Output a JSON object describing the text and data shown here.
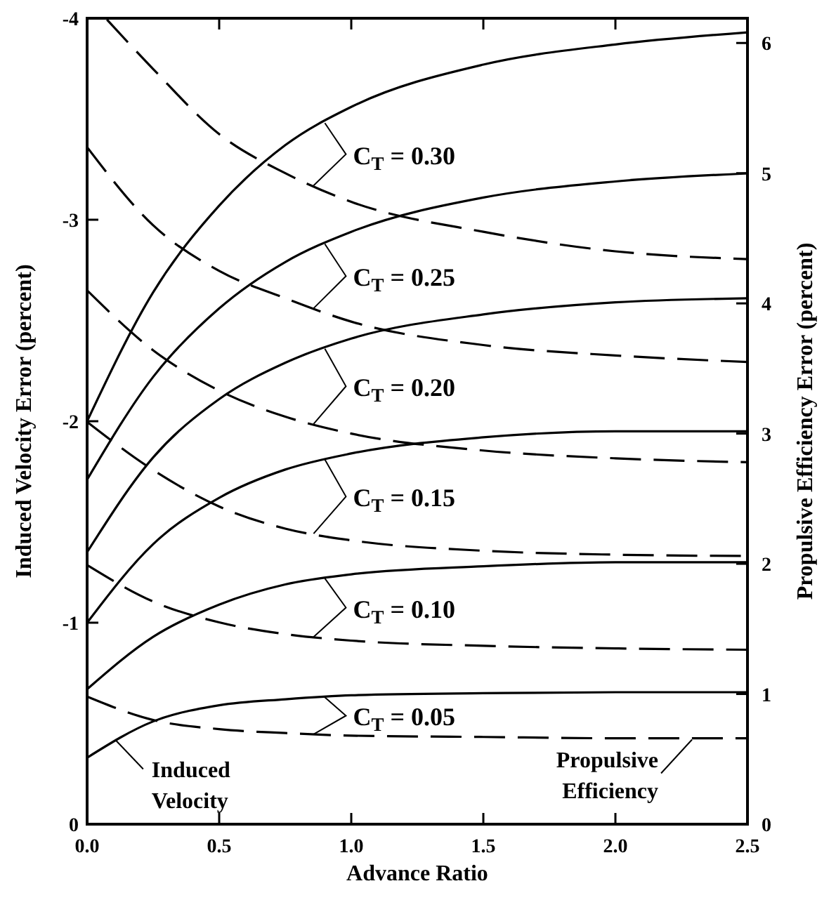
{
  "chart_data": {
    "type": "line",
    "xlabel": "Advance Ratio",
    "ylabel": "Induced Velocity Error (percent)",
    "y2label": "Propulsive Efficiency Error (percent)",
    "x": [
      0,
      0.25,
      0.5,
      0.75,
      1,
      1.5,
      2,
      2.5
    ],
    "xlim": [
      0,
      2.5
    ],
    "xticks": [
      {
        "value": 0,
        "label": "0.0"
      },
      0.5,
      {
        "value": 1,
        "label": "1.0"
      },
      1.5,
      {
        "value": 2,
        "label": "2.0"
      },
      2.5
    ],
    "ylim": [
      0,
      -4
    ],
    "yticks": [
      0,
      -1,
      -2,
      -3,
      -4
    ],
    "y2lim": [
      0,
      6.19
    ],
    "y2ticks": [
      0,
      1,
      2,
      3,
      4,
      5,
      6
    ],
    "grid": false,
    "marker": "none",
    "series": [
      {
        "color": "#000000",
        "line_style": "solid",
        "values": [
          -0.33,
          -0.51,
          -0.59,
          -0.62,
          -0.64,
          -0.65,
          -0.655,
          -0.655
        ]
      },
      {
        "color": "#000000",
        "line_style": "solid",
        "values": [
          -0.67,
          -0.93,
          -1.09,
          -1.19,
          -1.24,
          -1.28,
          -1.3,
          -1.3
        ]
      },
      {
        "color": "#000000",
        "line_style": "solid",
        "values": [
          -1.0,
          -1.39,
          -1.62,
          -1.76,
          -1.84,
          -1.92,
          -1.95,
          -1.95
        ]
      },
      {
        "color": "#000000",
        "line_style": "solid",
        "values": [
          -1.35,
          -1.82,
          -2.11,
          -2.29,
          -2.41,
          -2.53,
          -2.59,
          -2.61
        ]
      },
      {
        "color": "#000000",
        "line_style": "solid",
        "values": [
          -1.71,
          -2.22,
          -2.56,
          -2.79,
          -2.94,
          -3.11,
          -3.19,
          -3.23
        ]
      },
      {
        "color": "#000000",
        "line_style": "solid",
        "values": [
          -2.0,
          -2.64,
          -3.07,
          -3.37,
          -3.56,
          -3.77,
          -3.87,
          -3.93
        ]
      },
      {
        "color": "#000000",
        "line_style": "dashed",
        "axis": "y2",
        "values": [
          0.98,
          0.8,
          0.73,
          0.7,
          0.68,
          0.67,
          0.66,
          0.66
        ]
      },
      {
        "color": "#000000",
        "line_style": "dashed",
        "axis": "y2",
        "values": [
          1.99,
          1.71,
          1.55,
          1.46,
          1.41,
          1.37,
          1.35,
          1.34
        ]
      },
      {
        "color": "#000000",
        "line_style": "dashed",
        "axis": "y2",
        "values": [
          3.09,
          2.72,
          2.44,
          2.27,
          2.18,
          2.1,
          2.07,
          2.06
        ]
      },
      {
        "color": "#000000",
        "line_style": "dashed",
        "axis": "y2",
        "values": [
          4.1,
          3.64,
          3.33,
          3.13,
          3.0,
          2.87,
          2.81,
          2.78
        ]
      },
      {
        "color": "#000000",
        "line_style": "dashed",
        "axis": "y2",
        "values": [
          5.2,
          4.6,
          4.25,
          4.04,
          3.86,
          3.68,
          3.6,
          3.55
        ]
      },
      {
        "color": "#000000",
        "line_style": "dashed",
        "axis": "y2",
        "x": [
          0.075,
          0.25,
          0.5,
          0.75,
          1,
          1.5,
          2,
          2.5
        ],
        "values": [
          6.18,
          5.8,
          5.3,
          5.0,
          4.78,
          4.55,
          4.4,
          4.34
        ]
      }
    ],
    "annotations": [
      {
        "text": "C$_{T}$ = 0.05",
        "x": 0.9,
        "y": -0.63
      },
      {
        "text": "C$_{T}$ = 0.10",
        "x": 0.9,
        "y": -1.22
      },
      {
        "text": "C$_{T}$ = 0.15",
        "x": 0.9,
        "y": -1.81
      },
      {
        "text": "C$_{T}$ = 0.20",
        "x": 0.9,
        "y": -2.36
      },
      {
        "text": "C$_{T}$ = 0.25",
        "x": 0.9,
        "y": -2.88
      },
      {
        "text": "C$_{T}$ = 0.30",
        "x": 0.9,
        "y": -3.48
      },
      {
        "text": "Induced\nVelocity",
        "x": 0.106,
        "y": -0.42
      },
      {
        "text": "Propulsive\nEfficiency",
        "x": 2.29,
        "y": -0.42
      }
    ]
  }
}
